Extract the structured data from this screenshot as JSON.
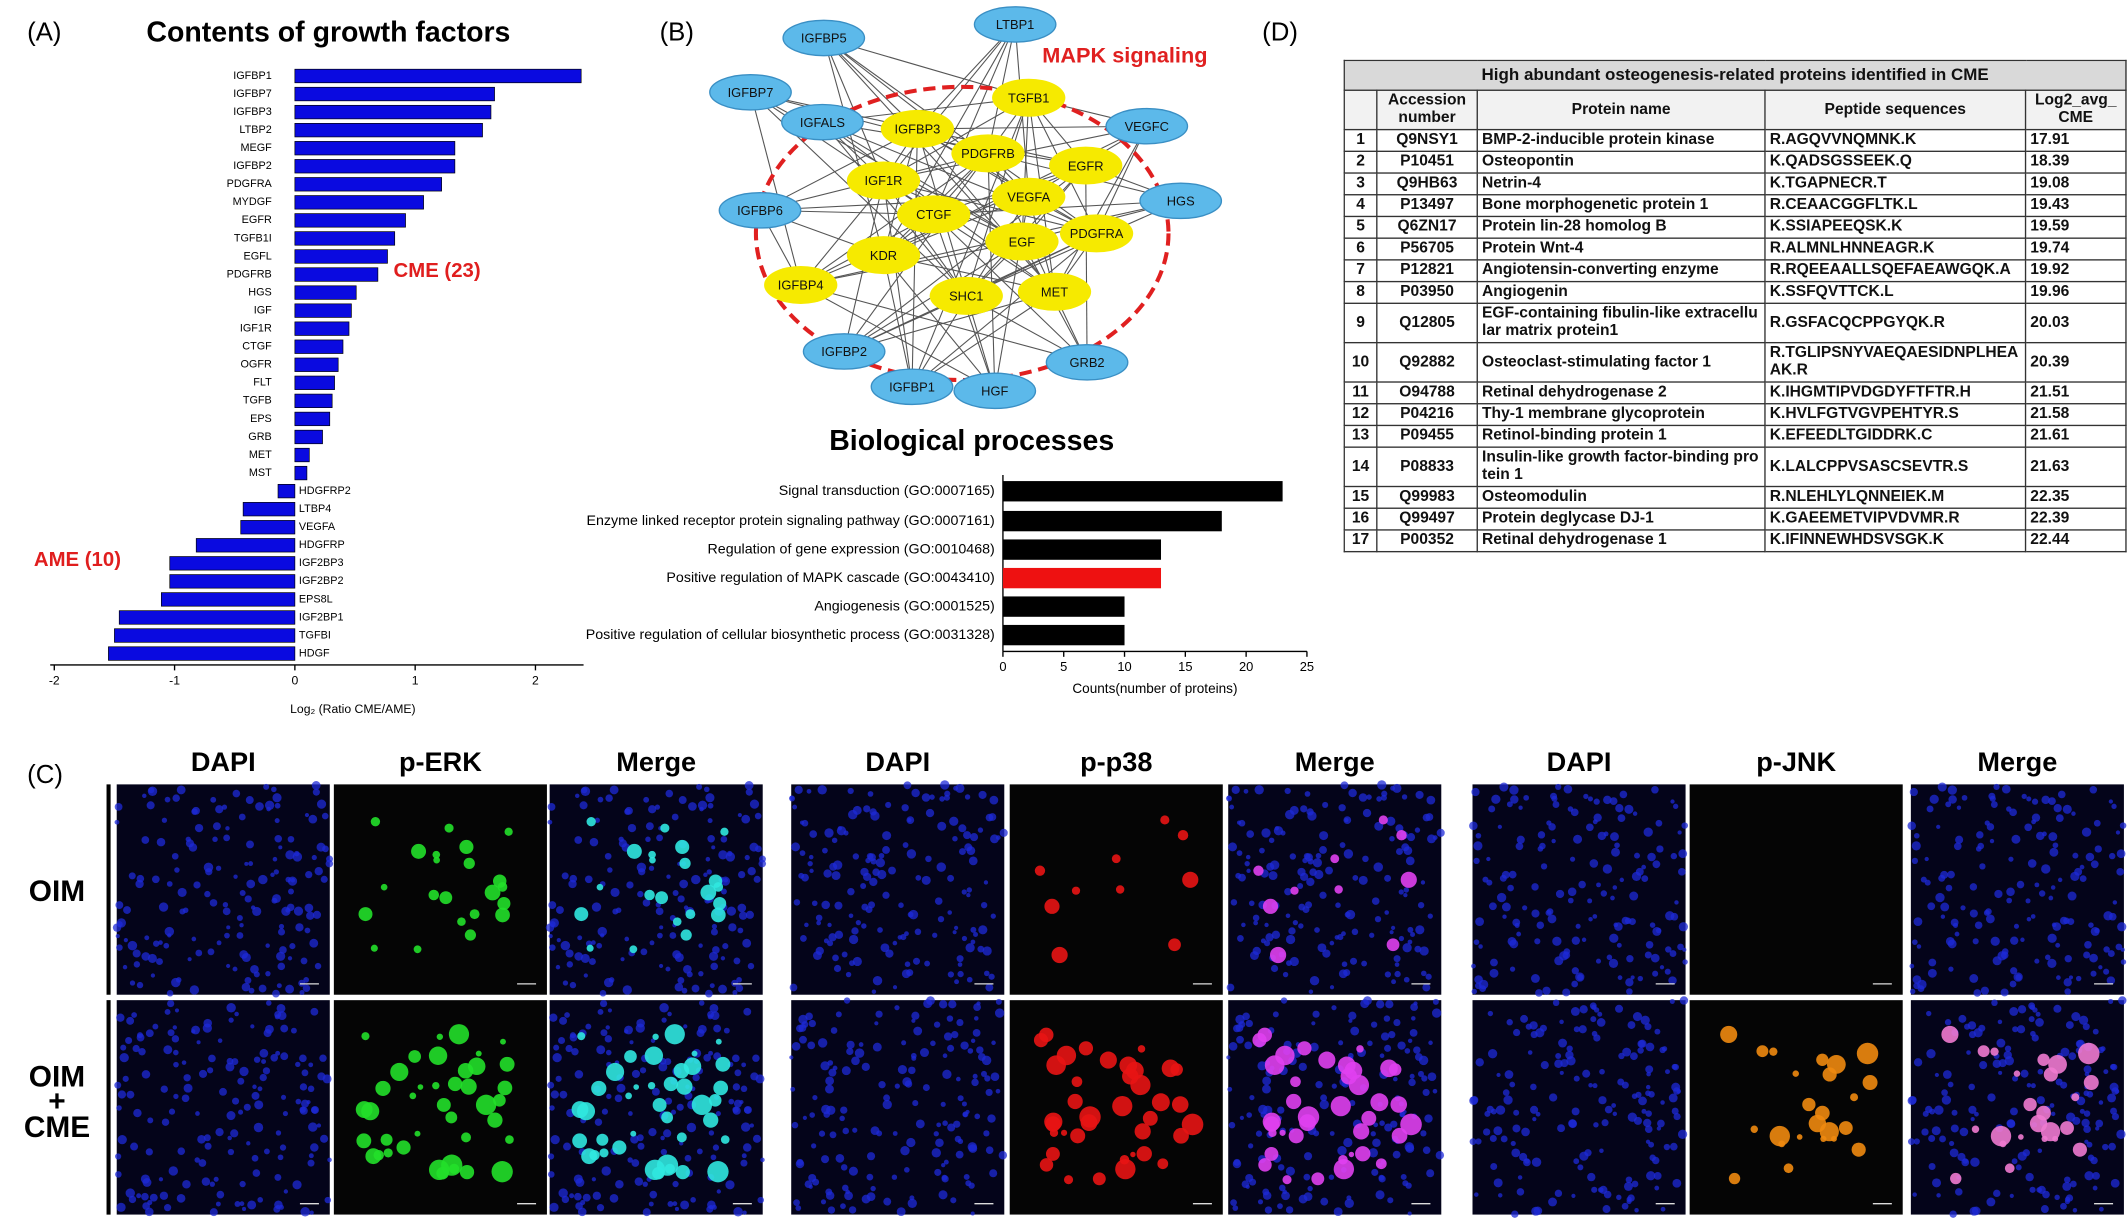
{
  "panel_labels": [
    "(A)",
    "(B)",
    "(C)",
    "(D)"
  ],
  "chart_data": [
    {
      "type": "bar",
      "orientation": "horizontal",
      "title": "Contents of growth factors",
      "xlabel": "Log₂ (Ratio CME/AME)",
      "categories": [
        "IGFBP1",
        "IGFBP7",
        "IGFBP3",
        "LTBP2",
        "MEGF",
        "IGFBP2",
        "PDGFRA",
        "MYDGF",
        "EGFR",
        "TGFB1I",
        "EGFL",
        "PDGFRB",
        "HGS",
        "IGF",
        "IGF1R",
        "CTGF",
        "OGFR",
        "FLT",
        "TGFB",
        "EPS",
        "GRB",
        "MET",
        "MST",
        "HDGFRP2",
        "LTBP4",
        "VEGFA",
        "HDGFRP",
        "IGF2BP3",
        "IGF2BP2",
        "EPS8L",
        "IGF2BP1",
        "TGFBI",
        "HDGF"
      ],
      "values": [
        2.38,
        1.66,
        1.63,
        1.56,
        1.33,
        1.33,
        1.22,
        1.07,
        0.92,
        0.83,
        0.77,
        0.69,
        0.51,
        0.47,
        0.45,
        0.4,
        0.36,
        0.33,
        0.31,
        0.29,
        0.23,
        0.12,
        0.1,
        -0.14,
        -0.43,
        -0.45,
        -0.82,
        -1.04,
        -1.04,
        -1.11,
        -1.46,
        -1.5,
        -1.55
      ],
      "color": "#0a0ae0",
      "xlim": [
        -2,
        2.4
      ],
      "xticks": [
        -2,
        -1,
        0,
        1,
        2
      ],
      "annotations": [
        "CME (23)",
        "AME (10)"
      ],
      "annotation_color": "#e01e1e"
    },
    {
      "type": "bar",
      "orientation": "horizontal",
      "title": "Biological processes",
      "xlabel": "Counts(number of proteins)",
      "categories": [
        "Signal transduction (GO:0007165)",
        "Enzyme linked receptor protein signaling pathway (GO:0007161)",
        "Regulation of gene expression (GO:0010468)",
        "Positive regulation of MAPK cascade (GO:0043410)",
        "Angiogenesis (GO:0001525)",
        "Positive regulation of cellular biosynthetic process (GO:0031328)"
      ],
      "values": [
        23,
        18,
        13,
        13,
        10,
        10
      ],
      "colors": [
        "#000000",
        "#000000",
        "#000000",
        "#ee1111",
        "#000000",
        "#000000"
      ],
      "xlim": [
        0,
        25
      ],
      "xticks": [
        0,
        5,
        10,
        15,
        20,
        25
      ]
    }
  ],
  "network": {
    "annotation": "MAPK signaling",
    "colors": {
      "outer": "#5cb9ea",
      "core": "#f6ea00",
      "ring": "#e02020"
    },
    "nodes": [
      {
        "label": "IGFBP5",
        "group": "outer"
      },
      {
        "label": "LTBP1",
        "group": "outer"
      },
      {
        "label": "IGFBP7",
        "group": "outer"
      },
      {
        "label": "IGFALS",
        "group": "outer"
      },
      {
        "label": "VEGFC",
        "group": "outer"
      },
      {
        "label": "IGFBP6",
        "group": "outer"
      },
      {
        "label": "HGS",
        "group": "outer"
      },
      {
        "label": "IGFBP2",
        "group": "outer"
      },
      {
        "label": "IGFBP1",
        "group": "outer"
      },
      {
        "label": "HGF",
        "group": "outer"
      },
      {
        "label": "GRB2",
        "group": "outer"
      },
      {
        "label": "TGFB1",
        "group": "core"
      },
      {
        "label": "IGFBP3",
        "group": "core"
      },
      {
        "label": "PDGFRB",
        "group": "core"
      },
      {
        "label": "EGFR",
        "group": "core"
      },
      {
        "label": "IGF1R",
        "group": "core"
      },
      {
        "label": "VEGFA",
        "group": "core"
      },
      {
        "label": "CTGF",
        "group": "core"
      },
      {
        "label": "EGF",
        "group": "core"
      },
      {
        "label": "PDGFRA",
        "group": "core"
      },
      {
        "label": "KDR",
        "group": "core"
      },
      {
        "label": "IGFBP4",
        "group": "core"
      },
      {
        "label": "SHC1",
        "group": "core"
      },
      {
        "label": "MET",
        "group": "core"
      }
    ]
  },
  "micrographs": {
    "groups": [
      {
        "columns": [
          "DAPI",
          "p-ERK",
          "Merge"
        ]
      },
      {
        "columns": [
          "DAPI",
          "p-p38",
          "Merge"
        ]
      },
      {
        "columns": [
          "DAPI",
          "p-JNK",
          "Merge"
        ]
      }
    ],
    "rows": [
      [
        "OIM"
      ],
      [
        "OIM",
        "+",
        "CME"
      ]
    ]
  },
  "table": {
    "title": "High abundant osteogenesis-related proteins identified in CME",
    "header": [
      "",
      "Accession number",
      "Protein name",
      "Peptide sequences",
      "Log2_avg_ CME"
    ],
    "rows": [
      [
        1,
        "Q9NSY1",
        "BMP-2-inducible protein kinase",
        "R.AGQVVNQMNK.K",
        17.91
      ],
      [
        2,
        "P10451",
        "Osteopontin",
        "K.QADSGSSEEK.Q",
        18.39
      ],
      [
        3,
        "Q9HB63",
        "Netrin-4",
        "K.TGAPNECR.T",
        19.08
      ],
      [
        4,
        "P13497",
        "Bone morphogenetic protein 1",
        "R.CEAACGGFLTK.L",
        19.43
      ],
      [
        5,
        "Q6ZN17",
        "Protein lin-28 homolog B",
        "K.SSIAPEEQSK.K",
        19.59
      ],
      [
        6,
        "P56705",
        "Protein Wnt-4",
        "R.ALMNLHNNEAGR.K",
        19.74
      ],
      [
        7,
        "P12821",
        "Angiotensin-converting enzyme",
        "R.RQEEAALLSQEFAEAWGQK.A",
        19.92
      ],
      [
        8,
        "P03950",
        "Angiogenin",
        "K.SSFQVTTCK.L",
        19.96
      ],
      [
        9,
        "Q12805",
        "EGF-containing fibulin-like extracellular matrix protein1",
        "R.GSFACQCPPGYQK.R",
        20.03
      ],
      [
        10,
        "Q92882",
        "Osteoclast-stimulating factor 1",
        "R.TGLIPSNYVAEQAESIDNPLHEAAK.R",
        20.39
      ],
      [
        11,
        "O94788",
        "Retinal dehydrogenase 2",
        "K.IHGMTIPVDGDYFTFTR.H",
        21.51
      ],
      [
        12,
        "P04216",
        "Thy-1 membrane glycoprotein",
        "K.HVLFGTVGVPEHTYR.S",
        21.58
      ],
      [
        13,
        "P09455",
        "Retinol-binding protein 1",
        "K.EFEEDLTGIDDRK.C",
        21.61
      ],
      [
        14,
        "P08833",
        "Insulin-like growth factor-binding protein 1",
        "K.LALCPPVSASCSEVTR.S",
        21.63
      ],
      [
        15,
        "Q99983",
        "Osteomodulin",
        "R.NLEHLYLQNNEIEK.M",
        22.35
      ],
      [
        16,
        "Q99497",
        "Protein deglycase DJ-1",
        "K.GAEEMETVIPVDVMR.R",
        22.39
      ],
      [
        17,
        "P00352",
        "Retinal dehydrogenase 1",
        "K.IFINNEWHDSVSGK.K",
        22.44
      ]
    ]
  }
}
